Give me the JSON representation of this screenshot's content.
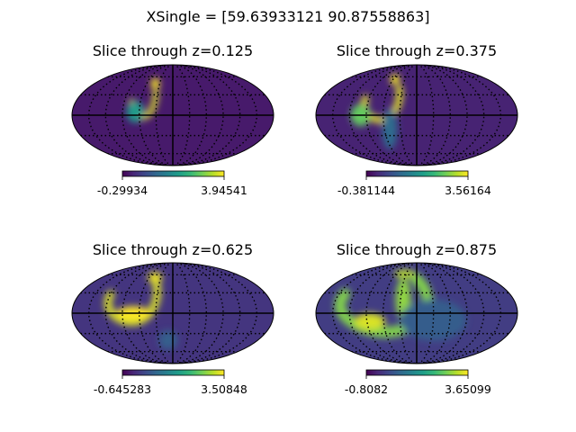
{
  "figure": {
    "suptitle": "XSingle = [59.63933121 90.87558863]",
    "colormap": "viridis",
    "background": "#ffffff"
  },
  "chart_data": [
    {
      "type": "heatmap",
      "projection": "mollweide",
      "title": "Slice through z=0.125",
      "graticule": true,
      "colorbar": {
        "min": -0.29934,
        "max": 3.94541,
        "min_label": "-0.29934",
        "max_label": "3.94541"
      },
      "features": [
        {
          "shape": "arc",
          "lon": -55,
          "lat": 25,
          "rx": 22,
          "ry": 28,
          "start": 190,
          "end": 380,
          "width": 10,
          "value": 3.7
        },
        {
          "shape": "blob",
          "lon": -67,
          "lat": 5,
          "rx": 16,
          "ry": 16,
          "value": 2.0
        },
        {
          "shape": "blob",
          "lon": -40,
          "lat": 48,
          "rx": 10,
          "ry": 10,
          "value": 3.9
        }
      ]
    },
    {
      "type": "heatmap",
      "projection": "mollweide",
      "title": "Slice through z=0.375",
      "graticule": true,
      "colorbar": {
        "min": -0.381144,
        "max": 3.56164,
        "min_label": "-0.381144",
        "max_label": "3.56164"
      },
      "features": [
        {
          "shape": "arc",
          "lon": -65,
          "lat": 25,
          "rx": 32,
          "ry": 32,
          "start": 180,
          "end": 390,
          "width": 12,
          "value": 3.4
        },
        {
          "shape": "blob",
          "lon": -100,
          "lat": 0,
          "rx": 18,
          "ry": 16,
          "value": 2.6
        },
        {
          "shape": "blob",
          "lon": -50,
          "lat": -20,
          "rx": 14,
          "ry": 30,
          "value": 1.0
        },
        {
          "shape": "blob",
          "lon": -55,
          "lat": 55,
          "rx": 12,
          "ry": 10,
          "value": 3.5
        }
      ]
    },
    {
      "type": "heatmap",
      "projection": "mollweide",
      "title": "Slice through z=0.625",
      "graticule": true,
      "colorbar": {
        "min": -0.645283,
        "max": 3.50848,
        "min_label": "-0.645283",
        "max_label": "3.50848"
      },
      "features": [
        {
          "shape": "arc",
          "lon": -75,
          "lat": 25,
          "rx": 45,
          "ry": 38,
          "start": 175,
          "end": 400,
          "width": 14,
          "value": 3.3
        },
        {
          "shape": "blob",
          "lon": -70,
          "lat": 0,
          "rx": 30,
          "ry": 10,
          "value": 3.5
        },
        {
          "shape": "blob",
          "lon": -45,
          "lat": 55,
          "rx": 18,
          "ry": 10,
          "value": 3.4
        },
        {
          "shape": "blob",
          "lon": -10,
          "lat": -40,
          "rx": 20,
          "ry": 15,
          "value": 0.6
        }
      ]
    },
    {
      "type": "heatmap",
      "projection": "mollweide",
      "title": "Slice through z=0.875",
      "graticule": true,
      "colorbar": {
        "min": -0.8082,
        "max": 3.65099,
        "min_label": "-0.8082",
        "max_label": "3.65099"
      },
      "features": [
        {
          "shape": "arc",
          "lon": -60,
          "lat": 20,
          "rx": 80,
          "ry": 48,
          "start": 170,
          "end": 405,
          "width": 20,
          "value": 2.8
        },
        {
          "shape": "blob",
          "lon": -85,
          "lat": -12,
          "rx": 28,
          "ry": 12,
          "value": 3.4
        },
        {
          "shape": "blob",
          "lon": -25,
          "lat": 20,
          "rx": 14,
          "ry": 34,
          "value": 2.9
        },
        {
          "shape": "blob",
          "lon": -35,
          "lat": 62,
          "rx": 30,
          "ry": 8,
          "value": 3.2
        },
        {
          "shape": "blob",
          "lon": 30,
          "lat": -10,
          "rx": 60,
          "ry": 30,
          "value": 0.5
        }
      ]
    }
  ]
}
